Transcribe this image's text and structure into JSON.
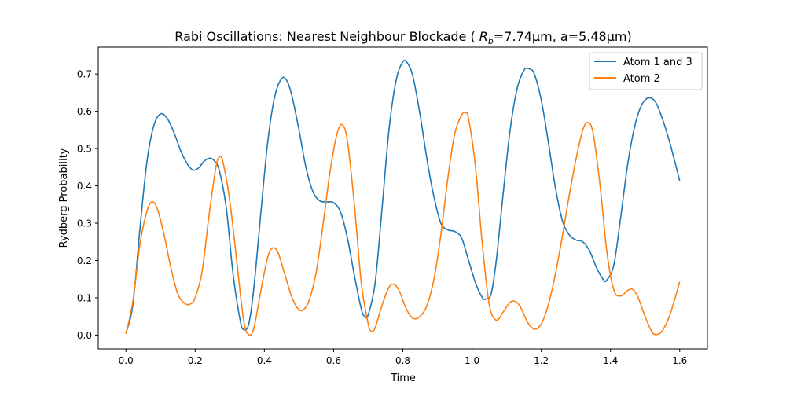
{
  "chart_data": {
    "type": "line",
    "title_prefix": "Rabi Oscillations: Nearest Neighbour Blockade ( ",
    "title_math_symbol": "R",
    "title_math_subscript": "b",
    "title_suffix": "=7.74µm, a=5.48µm)",
    "xlabel": "Time",
    "ylabel": "Rydberg Probability",
    "xlim": [
      -0.08,
      1.68
    ],
    "ylim": [
      -0.037,
      0.772
    ],
    "xticks": [
      0.0,
      0.2,
      0.4,
      0.6,
      0.8,
      1.0,
      1.2,
      1.4,
      1.6
    ],
    "xtick_labels": [
      "0.0",
      "0.2",
      "0.4",
      "0.6",
      "0.8",
      "1.0",
      "1.2",
      "1.4",
      "1.6"
    ],
    "yticks": [
      0.0,
      0.1,
      0.2,
      0.3,
      0.4,
      0.5,
      0.6,
      0.7
    ],
    "ytick_labels": [
      "0.0",
      "0.1",
      "0.2",
      "0.3",
      "0.4",
      "0.5",
      "0.6",
      "0.7"
    ],
    "grid": false,
    "legend_position": "top-right",
    "series": [
      {
        "name": "Atom 1 and 3",
        "color": "#1f77b4",
        "points": [
          [
            0.0,
            0.005
          ],
          [
            0.02,
            0.08
          ],
          [
            0.04,
            0.28
          ],
          [
            0.06,
            0.46
          ],
          [
            0.08,
            0.56
          ],
          [
            0.1,
            0.593
          ],
          [
            0.12,
            0.58
          ],
          [
            0.14,
            0.54
          ],
          [
            0.16,
            0.49
          ],
          [
            0.18,
            0.455
          ],
          [
            0.195,
            0.442
          ],
          [
            0.21,
            0.448
          ],
          [
            0.225,
            0.465
          ],
          [
            0.24,
            0.474
          ],
          [
            0.255,
            0.468
          ],
          [
            0.27,
            0.44
          ],
          [
            0.29,
            0.34
          ],
          [
            0.31,
            0.16
          ],
          [
            0.33,
            0.04
          ],
          [
            0.34,
            0.015
          ],
          [
            0.355,
            0.03
          ],
          [
            0.37,
            0.13
          ],
          [
            0.39,
            0.33
          ],
          [
            0.41,
            0.52
          ],
          [
            0.43,
            0.64
          ],
          [
            0.45,
            0.688
          ],
          [
            0.465,
            0.682
          ],
          [
            0.48,
            0.64
          ],
          [
            0.5,
            0.55
          ],
          [
            0.52,
            0.45
          ],
          [
            0.54,
            0.385
          ],
          [
            0.56,
            0.36
          ],
          [
            0.58,
            0.357
          ],
          [
            0.6,
            0.355
          ],
          [
            0.62,
            0.33
          ],
          [
            0.64,
            0.26
          ],
          [
            0.66,
            0.16
          ],
          [
            0.68,
            0.07
          ],
          [
            0.69,
            0.05
          ],
          [
            0.7,
            0.055
          ],
          [
            0.72,
            0.14
          ],
          [
            0.74,
            0.34
          ],
          [
            0.76,
            0.55
          ],
          [
            0.78,
            0.68
          ],
          [
            0.8,
            0.733
          ],
          [
            0.815,
            0.727
          ],
          [
            0.83,
            0.69
          ],
          [
            0.85,
            0.59
          ],
          [
            0.87,
            0.47
          ],
          [
            0.89,
            0.37
          ],
          [
            0.91,
            0.3
          ],
          [
            0.93,
            0.282
          ],
          [
            0.95,
            0.278
          ],
          [
            0.97,
            0.26
          ],
          [
            0.99,
            0.2
          ],
          [
            1.01,
            0.14
          ],
          [
            1.03,
            0.1
          ],
          [
            1.04,
            0.097
          ],
          [
            1.055,
            0.11
          ],
          [
            1.07,
            0.2
          ],
          [
            1.09,
            0.38
          ],
          [
            1.11,
            0.55
          ],
          [
            1.13,
            0.66
          ],
          [
            1.15,
            0.71
          ],
          [
            1.165,
            0.714
          ],
          [
            1.18,
            0.7
          ],
          [
            1.2,
            0.63
          ],
          [
            1.22,
            0.52
          ],
          [
            1.24,
            0.4
          ],
          [
            1.26,
            0.31
          ],
          [
            1.28,
            0.27
          ],
          [
            1.3,
            0.255
          ],
          [
            1.32,
            0.25
          ],
          [
            1.34,
            0.225
          ],
          [
            1.36,
            0.18
          ],
          [
            1.38,
            0.148
          ],
          [
            1.39,
            0.148
          ],
          [
            1.41,
            0.19
          ],
          [
            1.43,
            0.32
          ],
          [
            1.45,
            0.46
          ],
          [
            1.47,
            0.56
          ],
          [
            1.49,
            0.617
          ],
          [
            1.51,
            0.636
          ],
          [
            1.53,
            0.625
          ],
          [
            1.55,
            0.58
          ],
          [
            1.57,
            0.52
          ],
          [
            1.59,
            0.45
          ],
          [
            1.6,
            0.413
          ]
        ]
      },
      {
        "name": "Atom 2",
        "color": "#ff7f0e",
        "points": [
          [
            0.0,
            0.003
          ],
          [
            0.02,
            0.09
          ],
          [
            0.04,
            0.24
          ],
          [
            0.06,
            0.33
          ],
          [
            0.075,
            0.357
          ],
          [
            0.09,
            0.34
          ],
          [
            0.11,
            0.27
          ],
          [
            0.13,
            0.18
          ],
          [
            0.15,
            0.11
          ],
          [
            0.17,
            0.085
          ],
          [
            0.185,
            0.083
          ],
          [
            0.2,
            0.1
          ],
          [
            0.22,
            0.17
          ],
          [
            0.24,
            0.32
          ],
          [
            0.26,
            0.45
          ],
          [
            0.27,
            0.477
          ],
          [
            0.28,
            0.465
          ],
          [
            0.3,
            0.36
          ],
          [
            0.32,
            0.2
          ],
          [
            0.34,
            0.04
          ],
          [
            0.355,
            0.001
          ],
          [
            0.37,
            0.02
          ],
          [
            0.39,
            0.12
          ],
          [
            0.41,
            0.21
          ],
          [
            0.425,
            0.234
          ],
          [
            0.44,
            0.22
          ],
          [
            0.46,
            0.16
          ],
          [
            0.48,
            0.1
          ],
          [
            0.5,
            0.068
          ],
          [
            0.515,
            0.07
          ],
          [
            0.53,
            0.095
          ],
          [
            0.55,
            0.17
          ],
          [
            0.57,
            0.3
          ],
          [
            0.59,
            0.44
          ],
          [
            0.61,
            0.54
          ],
          [
            0.625,
            0.564
          ],
          [
            0.64,
            0.52
          ],
          [
            0.66,
            0.35
          ],
          [
            0.68,
            0.14
          ],
          [
            0.7,
            0.03
          ],
          [
            0.71,
            0.01
          ],
          [
            0.72,
            0.02
          ],
          [
            0.74,
            0.08
          ],
          [
            0.76,
            0.128
          ],
          [
            0.775,
            0.136
          ],
          [
            0.79,
            0.118
          ],
          [
            0.81,
            0.07
          ],
          [
            0.83,
            0.045
          ],
          [
            0.85,
            0.05
          ],
          [
            0.87,
            0.08
          ],
          [
            0.89,
            0.15
          ],
          [
            0.91,
            0.27
          ],
          [
            0.93,
            0.42
          ],
          [
            0.95,
            0.54
          ],
          [
            0.97,
            0.59
          ],
          [
            0.98,
            0.596
          ],
          [
            0.99,
            0.58
          ],
          [
            1.01,
            0.45
          ],
          [
            1.03,
            0.24
          ],
          [
            1.05,
            0.08
          ],
          [
            1.07,
            0.04
          ],
          [
            1.09,
            0.062
          ],
          [
            1.11,
            0.088
          ],
          [
            1.125,
            0.09
          ],
          [
            1.14,
            0.075
          ],
          [
            1.16,
            0.035
          ],
          [
            1.18,
            0.016
          ],
          [
            1.2,
            0.03
          ],
          [
            1.22,
            0.08
          ],
          [
            1.24,
            0.16
          ],
          [
            1.26,
            0.26
          ],
          [
            1.28,
            0.37
          ],
          [
            1.3,
            0.47
          ],
          [
            1.32,
            0.55
          ],
          [
            1.335,
            0.57
          ],
          [
            1.35,
            0.54
          ],
          [
            1.37,
            0.4
          ],
          [
            1.39,
            0.22
          ],
          [
            1.41,
            0.12
          ],
          [
            1.43,
            0.105
          ],
          [
            1.45,
            0.12
          ],
          [
            1.465,
            0.122
          ],
          [
            1.48,
            0.1
          ],
          [
            1.5,
            0.05
          ],
          [
            1.52,
            0.008
          ],
          [
            1.535,
            0.002
          ],
          [
            1.55,
            0.012
          ],
          [
            1.57,
            0.05
          ],
          [
            1.59,
            0.11
          ],
          [
            1.6,
            0.143
          ]
        ]
      }
    ]
  }
}
